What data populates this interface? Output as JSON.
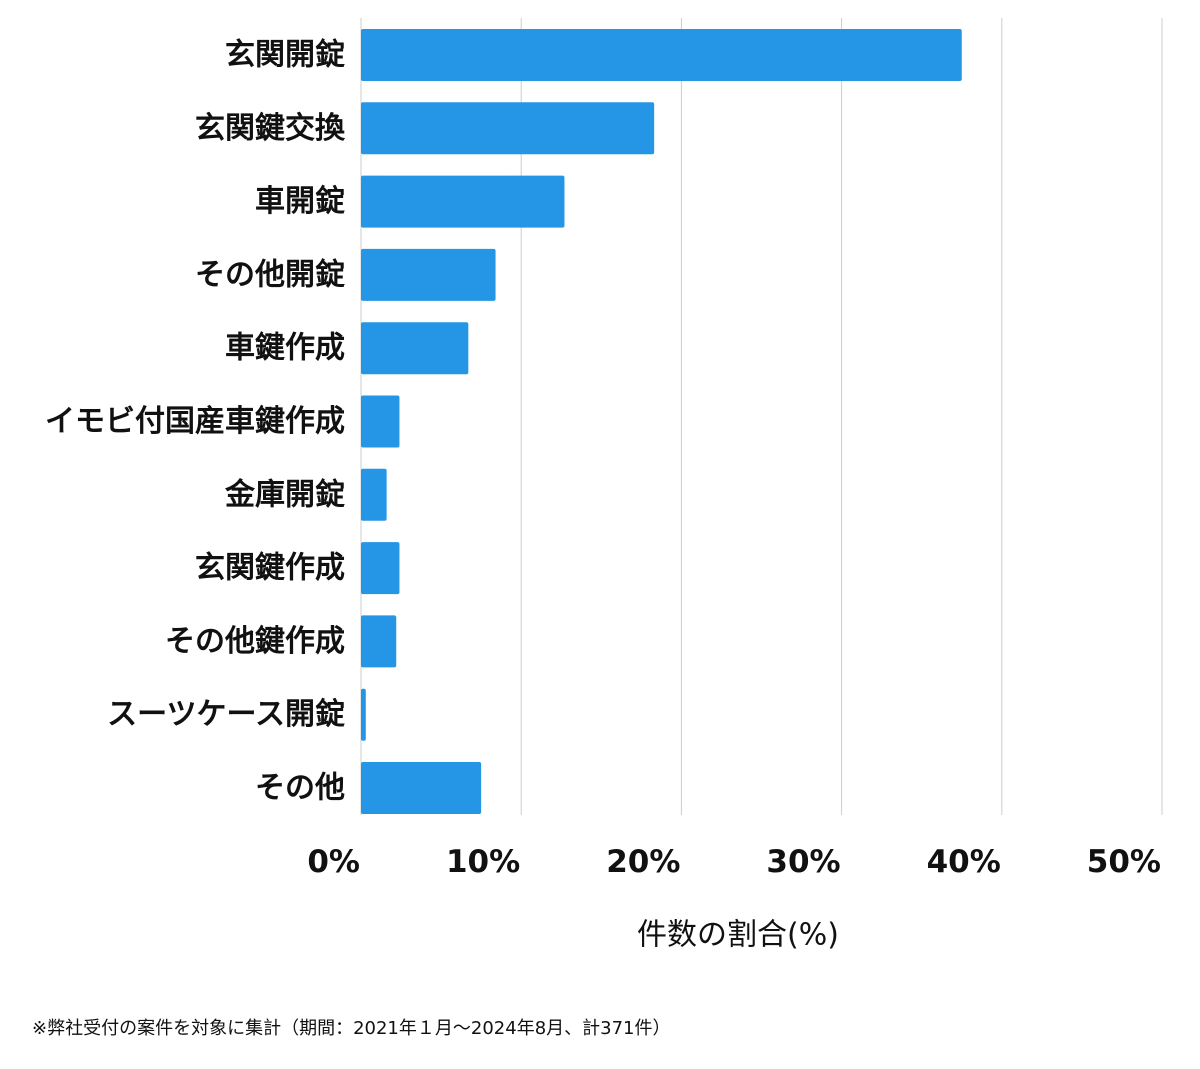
{
  "chart_data": {
    "type": "bar",
    "orientation": "horizontal",
    "title": "",
    "categories": [
      "玄関開錠",
      "玄関鍵交換",
      "車開錠",
      "その他開錠",
      "車鍵作成",
      "イモビ付国産車鍵作成",
      "金庫開錠",
      "玄関鍵作成",
      "その他鍵作成",
      "スーツケース開錠",
      "その他"
    ],
    "values": [
      37.5,
      18.3,
      12.7,
      8.4,
      6.7,
      2.4,
      1.6,
      2.4,
      2.2,
      0.3,
      7.5
    ],
    "xlabel": "件数の割合(%)",
    "ylabel": "",
    "xlim": [
      0,
      50
    ],
    "ticks": [
      0,
      10,
      20,
      30,
      40,
      50
    ],
    "tick_labels": [
      "0%",
      "10%",
      "20%",
      "30%",
      "40%",
      "50%"
    ],
    "grid": true,
    "bar_color": "#2596e6"
  },
  "footnote": "※弊社受付の案件を対象に集計（期間：2021年１月〜2024年8月、計371件）"
}
